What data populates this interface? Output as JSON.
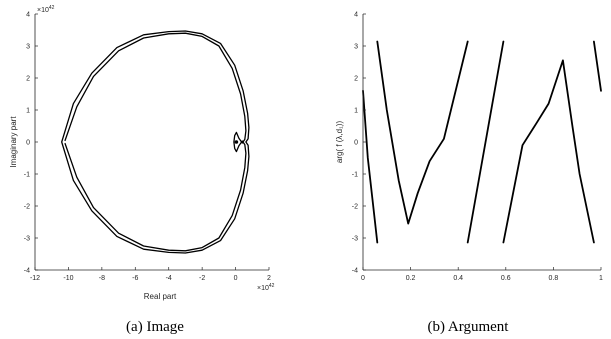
{
  "chart_data": [
    {
      "type": "line",
      "caption": "(a) Image",
      "xlabel": "Real part",
      "ylabel": "Imaginary part",
      "x_multiplier": "×10^42",
      "y_multiplier": "×10^42",
      "xlim": [
        -12,
        2
      ],
      "ylim": [
        -4,
        4
      ],
      "xticks": [
        "-12",
        "-10",
        "-8",
        "-6",
        "-4",
        "-2",
        "0",
        "2"
      ],
      "yticks": [
        "-4",
        "-3",
        "-2",
        "-1",
        "0",
        "1",
        "2",
        "3",
        "4"
      ],
      "grid": false,
      "series": [
        {
          "values": [
            [
              -10.2,
              0.05
            ],
            [
              -9.5,
              1.1
            ],
            [
              -8.5,
              2.05
            ],
            [
              -7,
              2.85
            ],
            [
              -5.5,
              3.25
            ],
            [
              -4,
              3.38
            ],
            [
              -3,
              3.4
            ],
            [
              -2,
              3.3
            ],
            [
              -1,
              3.0
            ],
            [
              -0.2,
              2.3
            ],
            [
              0.3,
              1.5
            ],
            [
              0.55,
              0.8
            ],
            [
              0.62,
              0.35
            ],
            [
              0.55,
              0.08
            ],
            [
              0.4,
              -0.03
            ],
            [
              0.2,
              0.12
            ],
            [
              0.05,
              0.3
            ],
            [
              -0.05,
              0.2
            ],
            [
              -0.1,
              0
            ],
            [
              -0.05,
              -0.2
            ],
            [
              0.05,
              -0.3
            ],
            [
              0.2,
              -0.12
            ],
            [
              0.4,
              0.03
            ],
            [
              0.55,
              -0.08
            ],
            [
              0.62,
              -0.35
            ],
            [
              0.55,
              -0.8
            ],
            [
              0.3,
              -1.5
            ],
            [
              -0.2,
              -2.3
            ],
            [
              -1,
              -3.0
            ],
            [
              -2,
              -3.3
            ],
            [
              -3,
              -3.4
            ],
            [
              -4,
              -3.38
            ],
            [
              -5.5,
              -3.25
            ],
            [
              -7,
              -2.85
            ],
            [
              -8.5,
              -2.05
            ],
            [
              -9.5,
              -1.1
            ],
            [
              -10.2,
              -0.05
            ]
          ]
        },
        {
          "values": [
            [
              -10.4,
              0
            ],
            [
              -9.7,
              1.2
            ],
            [
              -8.6,
              2.15
            ],
            [
              -7.1,
              2.95
            ],
            [
              -5.5,
              3.35
            ],
            [
              -4,
              3.45
            ],
            [
              -3,
              3.47
            ],
            [
              -2,
              3.38
            ],
            [
              -0.9,
              3.08
            ],
            [
              -0.05,
              2.4
            ],
            [
              0.45,
              1.6
            ],
            [
              0.72,
              0.9
            ],
            [
              0.8,
              0.45
            ],
            [
              0.75,
              0.1
            ],
            [
              0.62,
              0
            ],
            [
              0.75,
              -0.1
            ],
            [
              0.8,
              -0.45
            ],
            [
              0.72,
              -0.9
            ],
            [
              0.45,
              -1.6
            ],
            [
              -0.05,
              -2.4
            ],
            [
              -0.9,
              -3.08
            ],
            [
              -2,
              -3.38
            ],
            [
              -3,
              -3.47
            ],
            [
              -4,
              -3.45
            ],
            [
              -5.5,
              -3.35
            ],
            [
              -7.1,
              -2.95
            ],
            [
              -8.6,
              -2.15
            ],
            [
              -9.7,
              -1.2
            ],
            [
              -10.4,
              0
            ]
          ]
        }
      ],
      "markers": [
        [
          0.05,
          0
        ]
      ]
    },
    {
      "type": "line",
      "caption": "(b) Argument",
      "ylabel": "arg( f (λ,d₁))",
      "xlim": [
        0,
        1
      ],
      "ylim": [
        -4,
        4
      ],
      "xticks": [
        "0",
        "0.2",
        "0.4",
        "0.6",
        "0.8",
        "1"
      ],
      "yticks": [
        "-4",
        "-3",
        "-2",
        "-1",
        "0",
        "1",
        "2",
        "3",
        "4"
      ],
      "grid": false,
      "series": [
        {
          "values": [
            [
              0,
              1.6
            ],
            [
              0.02,
              -0.5
            ],
            [
              0.04,
              -1.8
            ],
            [
              0.06,
              -3.14
            ]
          ]
        },
        {
          "values": [
            [
              0.06,
              3.14
            ],
            [
              0.1,
              1.0
            ],
            [
              0.15,
              -1.2
            ],
            [
              0.19,
              -2.55
            ],
            [
              0.23,
              -1.6
            ],
            [
              0.28,
              -0.6
            ],
            [
              0.34,
              0.1
            ],
            [
              0.44,
              3.14
            ]
          ]
        },
        {
          "values": [
            [
              0.44,
              -3.14
            ],
            [
              0.59,
              3.14
            ]
          ]
        },
        {
          "values": [
            [
              0.59,
              -3.14
            ],
            [
              0.67,
              -0.1
            ],
            [
              0.73,
              0.6
            ],
            [
              0.78,
              1.2
            ],
            [
              0.84,
              2.55
            ],
            [
              0.88,
              0.5
            ],
            [
              0.91,
              -1.0
            ],
            [
              0.97,
              -3.14
            ]
          ]
        },
        {
          "values": [
            [
              0.97,
              3.14
            ],
            [
              1.0,
              1.6
            ]
          ]
        }
      ]
    }
  ]
}
